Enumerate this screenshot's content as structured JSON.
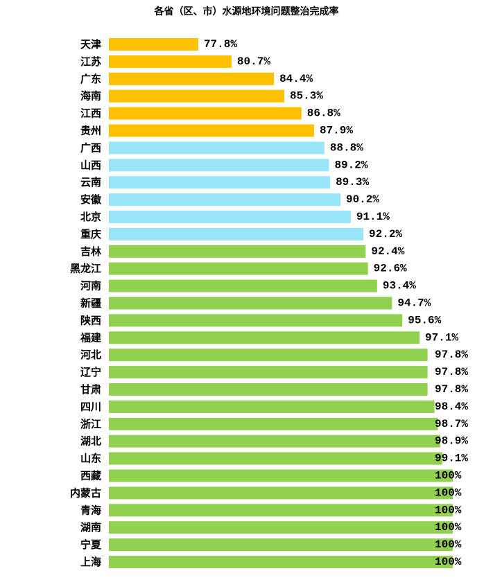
{
  "chart_data": {
    "type": "bar",
    "orientation": "horizontal",
    "title": "各省（区、市）水源地环境问题整治完成率",
    "xlim": [
      70,
      100
    ],
    "grid": false,
    "legend": "none",
    "colors": {
      "low": "#FFC000",
      "mid": "#99E6F8",
      "high": "#92D050"
    },
    "categories": [
      "天津",
      "江苏",
      "广东",
      "海南",
      "江西",
      "贵州",
      "广西",
      "山西",
      "云南",
      "安徽",
      "北京",
      "重庆",
      "吉林",
      "黑龙江",
      "河南",
      "新疆",
      "陕西",
      "福建",
      "河北",
      "辽宁",
      "甘肃",
      "四川",
      "浙江",
      "湖北",
      "山东",
      "西藏",
      "内蒙古",
      "青海",
      "湖南",
      "宁夏",
      "上海"
    ],
    "values": [
      77.8,
      80.7,
      84.4,
      85.3,
      86.8,
      87.9,
      88.8,
      89.2,
      89.3,
      90.2,
      91.1,
      92.2,
      92.4,
      92.6,
      93.4,
      94.7,
      95.6,
      97.1,
      97.8,
      97.8,
      97.8,
      98.4,
      98.7,
      98.9,
      99.1,
      100,
      100,
      100,
      100,
      100,
      100
    ],
    "labels": [
      "77.8%",
      "80.7%",
      "84.4%",
      "85.3%",
      "86.8%",
      "87.9%",
      "88.8%",
      "89.2%",
      "89.3%",
      "90.2%",
      "91.1%",
      "92.2%",
      "92.4%",
      "92.6%",
      "93.4%",
      "94.7%",
      "95.6%",
      "97.1%",
      "97.8%",
      "97.8%",
      "97.8%",
      "98.4%",
      "98.7%",
      "98.9%",
      "99.1%",
      "100%",
      "100%",
      "100%",
      "100%",
      "100%",
      "100%"
    ],
    "color_groups": [
      "low",
      "low",
      "low",
      "low",
      "low",
      "low",
      "mid",
      "mid",
      "mid",
      "mid",
      "mid",
      "mid",
      "high",
      "high",
      "high",
      "high",
      "high",
      "high",
      "high",
      "high",
      "high",
      "high",
      "high",
      "high",
      "high",
      "high",
      "high",
      "high",
      "high",
      "high",
      "high"
    ]
  }
}
